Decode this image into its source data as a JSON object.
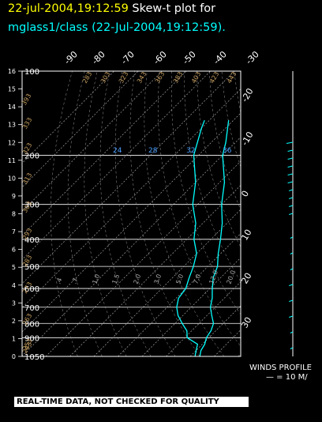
{
  "header": {
    "timestamp": "22-jul-2004,19:12:59",
    "title": "Skew-t plot for",
    "subtitle": "mglass1/class (22-Jul-2004,19:12:59)."
  },
  "footer": {
    "disclaimer": "REAL-TIME DATA, NOT CHECKED FOR QUALITY"
  },
  "wind_panel": {
    "label": "WINDS PROFILE",
    "scale": "— = 10 M/"
  },
  "colors": {
    "background": "#000000",
    "frame": "#ffffff",
    "trace": "#00ffff",
    "adiabat_label": "#c8a060",
    "timestamp": "#ffff00"
  },
  "chart_data": {
    "type": "line",
    "title": "Skew-t plot for",
    "pressure_ticks": [
      "100",
      "200",
      "300",
      "400",
      "500",
      "600",
      "700",
      "800",
      "900",
      "1050"
    ],
    "height_ticks": [
      "16",
      "15",
      "14",
      "13",
      "12",
      "11",
      "10",
      "9",
      "8",
      "7",
      "6",
      "5",
      "4",
      "3",
      "2",
      "1",
      "0"
    ],
    "temperature_ticks": [
      "-90",
      "-80",
      "-70",
      "-60",
      "-50",
      "-40",
      "-30"
    ],
    "right_temperature_ticks": [
      "-20",
      "-10",
      "0",
      "10",
      "20",
      "30"
    ],
    "mixing_ratio_labels": [
      "24",
      "28",
      "32",
      "36"
    ],
    "low_mixing_ratio_labels": [
      ".4",
      ".7",
      "1.0",
      "1.5",
      "2.0",
      "3.0",
      "5.0",
      "7.0",
      "12.0",
      "20.0"
    ],
    "adiabat_top_labels": [
      "443",
      "423",
      "403",
      "383",
      "363",
      "343",
      "323",
      "303",
      "283"
    ],
    "adiabat_left_labels": [
      "393",
      "333",
      "323",
      "313",
      "303",
      "293",
      "283",
      "273",
      "263",
      "253",
      "243"
    ],
    "ylim": [
      1050,
      100
    ],
    "series": [
      {
        "values": [
          {
            "p": 1050,
            "t": 24
          },
          {
            "p": 1000,
            "t": 22
          },
          {
            "p": 950,
            "t": 21
          },
          {
            "p": 900,
            "t": 19
          },
          {
            "p": 850,
            "t": 18
          },
          {
            "p": 800,
            "t": 16
          },
          {
            "p": 750,
            "t": 12
          },
          {
            "p": 700,
            "t": 8
          },
          {
            "p": 650,
            "t": 5
          },
          {
            "p": 600,
            "t": 1
          },
          {
            "p": 550,
            "t": -3
          },
          {
            "p": 500,
            "t": -6
          },
          {
            "p": 450,
            "t": -11
          },
          {
            "p": 400,
            "t": -16
          },
          {
            "p": 350,
            "t": -22
          },
          {
            "p": 300,
            "t": -30
          },
          {
            "p": 250,
            "t": -38
          },
          {
            "p": 200,
            "t": -50
          },
          {
            "p": 180,
            "t": -54
          },
          {
            "p": 150,
            "t": -62
          }
        ]
      },
      {
        "values": [
          {
            "p": 1050,
            "t": 22
          },
          {
            "p": 1000,
            "t": 20
          },
          {
            "p": 950,
            "t": 18
          },
          {
            "p": 900,
            "t": 11
          },
          {
            "p": 850,
            "t": 8
          },
          {
            "p": 800,
            "t": 3
          },
          {
            "p": 750,
            "t": -2
          },
          {
            "p": 700,
            "t": -6
          },
          {
            "p": 650,
            "t": -9
          },
          {
            "p": 600,
            "t": -10
          },
          {
            "p": 550,
            "t": -13
          },
          {
            "p": 500,
            "t": -16
          },
          {
            "p": 450,
            "t": -20
          },
          {
            "p": 400,
            "t": -27
          },
          {
            "p": 350,
            "t": -33
          },
          {
            "p": 300,
            "t": -42
          },
          {
            "p": 250,
            "t": -50
          },
          {
            "p": 200,
            "t": -62
          },
          {
            "p": 160,
            "t": -70
          },
          {
            "p": 150,
            "t": -72
          }
        ]
      }
    ]
  }
}
